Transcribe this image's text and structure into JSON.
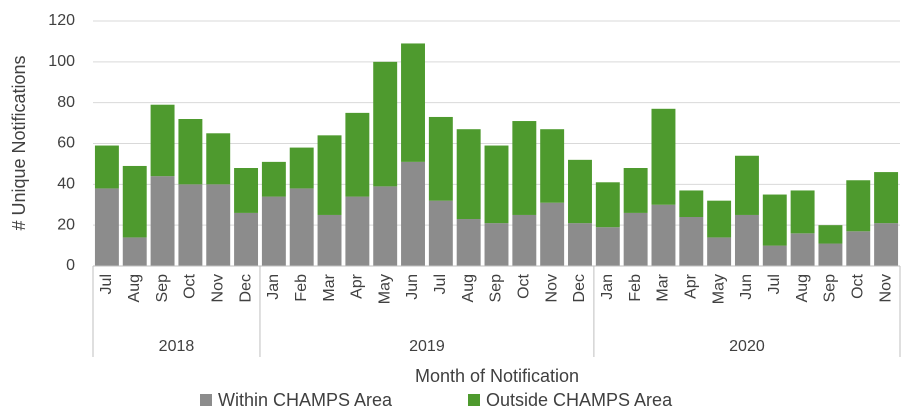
{
  "chart_data": {
    "type": "stacked_bar",
    "y_axis_label": "# Unique Notifications",
    "x_axis_label": "Month of Notification",
    "groups": [
      {
        "name": "2018",
        "categories": [
          "Jul",
          "Aug",
          "Sep",
          "Oct",
          "Nov",
          "Dec"
        ]
      },
      {
        "name": "2019",
        "categories": [
          "Jan",
          "Feb",
          "Mar",
          "Apr",
          "May",
          "Jun",
          "Jul",
          "Aug",
          "Sep",
          "Oct",
          "Nov",
          "Dec"
        ]
      },
      {
        "name": "2020",
        "categories": [
          "Jan",
          "Feb",
          "Mar",
          "Apr",
          "May",
          "Jun",
          "Jul",
          "Aug",
          "Sep",
          "Oct",
          "Nov"
        ]
      }
    ],
    "series": [
      {
        "name": "Within CHAMPS Area",
        "color": "#8c8c8c",
        "values": [
          38,
          14,
          44,
          40,
          40,
          26,
          34,
          38,
          25,
          34,
          39,
          51,
          32,
          23,
          21,
          25,
          31,
          21,
          19,
          26,
          30,
          24,
          14,
          25,
          10,
          16,
          11,
          17,
          21
        ]
      },
      {
        "name": "Outside CHAMPS Area",
        "color": "#4e9a2e",
        "values": [
          21,
          35,
          35,
          32,
          25,
          22,
          17,
          20,
          39,
          41,
          61,
          58,
          41,
          44,
          38,
          46,
          36,
          31,
          22,
          22,
          47,
          13,
          18,
          29,
          25,
          21,
          9,
          25,
          25
        ]
      }
    ],
    "ylim": [
      0,
      120
    ],
    "yticks": [
      0,
      20,
      40,
      60,
      80,
      100,
      120
    ],
    "grid": true
  }
}
